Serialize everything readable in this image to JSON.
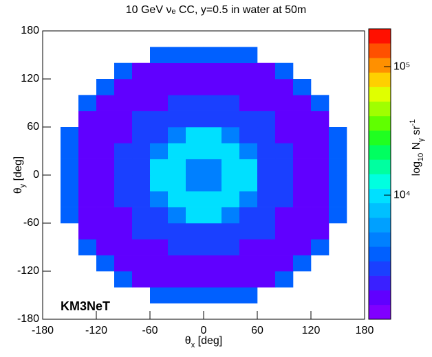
{
  "chart_data": {
    "type": "heatmap",
    "title": "10 GeV νₑ CC, y=0.5 in water at 50m",
    "x_label": [
      {
        "text": "θ"
      },
      {
        "text": "x",
        "sub": true
      },
      {
        "text": " [deg]"
      }
    ],
    "y_label": [
      {
        "text": "θ"
      },
      {
        "text": "y",
        "sub": true
      },
      {
        "text": " [deg]"
      }
    ],
    "z_label": [
      {
        "text": "log"
      },
      {
        "text": "10",
        "sub": true
      },
      {
        "text": " N"
      },
      {
        "text": "γ",
        "sub": true
      },
      {
        "text": " sr"
      },
      {
        "text": "-1",
        "sup": true
      }
    ],
    "annotation": "KM3NeT",
    "xlim": [
      -180,
      180
    ],
    "ylim": [
      -180,
      180
    ],
    "xticks": [
      -180,
      -120,
      -60,
      0,
      60,
      120,
      180
    ],
    "yticks": [
      -180,
      -120,
      -60,
      0,
      60,
      120,
      180
    ],
    "xbins": [
      -180,
      -160,
      -140,
      -120,
      -100,
      -80,
      -60,
      -40,
      -20,
      0,
      20,
      40,
      60,
      80,
      100,
      120,
      140,
      160,
      180
    ],
    "ybins": [
      -180,
      -160,
      -140,
      -120,
      -100,
      -80,
      -60,
      -40,
      -20,
      0,
      20,
      40,
      60,
      80,
      100,
      120,
      140,
      160,
      180
    ],
    "zlog": true,
    "zlim": [
      1080,
      197000
    ],
    "zticks": [
      {
        "value": 10000,
        "label": "10⁴"
      },
      {
        "value": 100000,
        "label": "10⁵"
      }
    ],
    "palette": [
      "#8000ff",
      "#6000ff",
      "#3a20ff",
      "#1a40ff",
      "#0060ff",
      "#0080ff",
      "#00a0ff",
      "#00c0ff",
      "#00e0ff",
      "#00ffe0",
      "#00ffa0",
      "#00ff60",
      "#20ff20",
      "#60ff00",
      "#a0ff00",
      "#e0ff00",
      "#ffd000",
      "#ff9000",
      "#ff5000",
      "#ff1000"
    ],
    "z": [
      [
        null,
        null,
        null,
        null,
        null,
        null,
        null,
        null,
        null,
        null,
        null,
        null,
        null,
        null,
        null,
        null,
        null,
        null
      ],
      [
        null,
        null,
        null,
        null,
        null,
        null,
        3500,
        3500,
        3500,
        3500,
        3500,
        3500,
        null,
        null,
        null,
        null,
        null,
        null
      ],
      [
        null,
        null,
        null,
        null,
        3500,
        1500,
        1500,
        1500,
        1500,
        1500,
        1500,
        1500,
        1500,
        3500,
        null,
        null,
        null,
        null
      ],
      [
        null,
        null,
        null,
        3500,
        1500,
        1500,
        1800,
        1800,
        1800,
        1800,
        1800,
        1800,
        1500,
        1500,
        3500,
        null,
        null,
        null
      ],
      [
        null,
        null,
        3500,
        1500,
        1800,
        1800,
        1800,
        2500,
        2500,
        2500,
        2500,
        1800,
        1800,
        1800,
        1500,
        3500,
        null,
        null
      ],
      [
        null,
        null,
        1500,
        1500,
        1800,
        2500,
        2500,
        2500,
        2500,
        2500,
        2500,
        2500,
        2500,
        1800,
        1500,
        1500,
        null,
        null
      ],
      [
        null,
        3500,
        1500,
        1800,
        1800,
        2500,
        2500,
        4000,
        9000,
        9000,
        4000,
        2500,
        2500,
        1800,
        1800,
        1500,
        3500,
        null
      ],
      [
        null,
        3500,
        1500,
        1800,
        2500,
        2500,
        4000,
        9000,
        9000,
        9000,
        9000,
        4000,
        2500,
        2500,
        1800,
        1500,
        3500,
        null
      ],
      [
        null,
        3500,
        1500,
        1800,
        2500,
        2500,
        9000,
        9000,
        5000,
        5000,
        9000,
        9000,
        2500,
        2500,
        1800,
        1500,
        3500,
        null
      ],
      [
        null,
        3500,
        1500,
        1800,
        2500,
        2500,
        9000,
        9000,
        5000,
        5000,
        9000,
        9000,
        2500,
        2500,
        1800,
        1500,
        3500,
        null
      ],
      [
        null,
        3500,
        1500,
        1800,
        2500,
        2500,
        4000,
        9000,
        9000,
        9000,
        9000,
        4000,
        2500,
        2500,
        1800,
        1500,
        3500,
        null
      ],
      [
        null,
        3500,
        1500,
        1800,
        1800,
        2500,
        2500,
        4000,
        9000,
        9000,
        4000,
        2500,
        2500,
        1800,
        1800,
        1500,
        3500,
        null
      ],
      [
        null,
        null,
        1500,
        1500,
        1800,
        2500,
        2500,
        2500,
        2500,
        2500,
        2500,
        2500,
        2500,
        1800,
        1500,
        1500,
        null,
        null
      ],
      [
        null,
        null,
        3500,
        1500,
        1800,
        1800,
        1800,
        2500,
        2500,
        2500,
        2500,
        1800,
        1800,
        1800,
        1500,
        3500,
        null,
        null
      ],
      [
        null,
        null,
        null,
        3500,
        1500,
        1500,
        1800,
        1800,
        1800,
        1800,
        1800,
        1800,
        1500,
        1500,
        3500,
        null,
        null,
        null
      ],
      [
        null,
        null,
        null,
        null,
        3500,
        1500,
        1500,
        1500,
        1500,
        1500,
        1500,
        1500,
        1500,
        3500,
        null,
        null,
        null,
        null
      ],
      [
        null,
        null,
        null,
        null,
        null,
        null,
        3500,
        3500,
        3500,
        3500,
        3500,
        3500,
        null,
        null,
        null,
        null,
        null,
        null
      ],
      [
        null,
        null,
        null,
        null,
        null,
        null,
        null,
        null,
        null,
        null,
        null,
        null,
        null,
        null,
        null,
        null,
        null,
        null
      ]
    ]
  }
}
